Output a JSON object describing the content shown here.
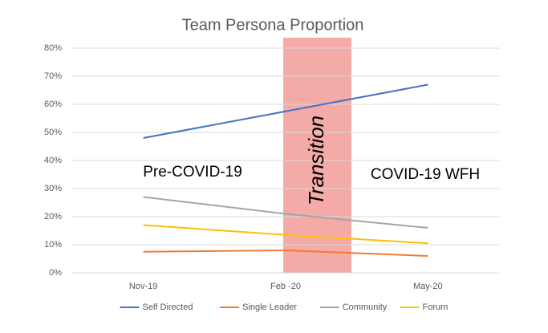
{
  "chart_data": {
    "type": "line",
    "title": "Team Persona Proportion",
    "categories": [
      "Nov-19",
      "Feb -20",
      "May-20"
    ],
    "series": [
      {
        "name": "Self Directed",
        "color": "#4472c4",
        "values": [
          48,
          57.5,
          67
        ]
      },
      {
        "name": "Single Leader",
        "color": "#ed7d31",
        "values": [
          7.5,
          8,
          6
        ]
      },
      {
        "name": "Community",
        "color": "#a5a5a5",
        "values": [
          27,
          21,
          16
        ]
      },
      {
        "name": "Forum",
        "color": "#ffc000",
        "values": [
          17,
          13.5,
          10.5
        ]
      }
    ],
    "ylim": [
      0,
      80
    ],
    "yticks": [
      {
        "value": 0,
        "label": "0%"
      },
      {
        "value": 10,
        "label": "10%"
      },
      {
        "value": 20,
        "label": "20%"
      },
      {
        "value": 30,
        "label": "30%"
      },
      {
        "value": 40,
        "label": "40%"
      },
      {
        "value": 50,
        "label": "50%"
      },
      {
        "value": 60,
        "label": "60%"
      },
      {
        "value": 70,
        "label": "70%"
      },
      {
        "value": 80,
        "label": "80%"
      }
    ],
    "grid": true,
    "legend": "bottom",
    "annotations": [
      "Pre-COVID-19",
      "Transition",
      "COVID-19 WFH"
    ]
  }
}
